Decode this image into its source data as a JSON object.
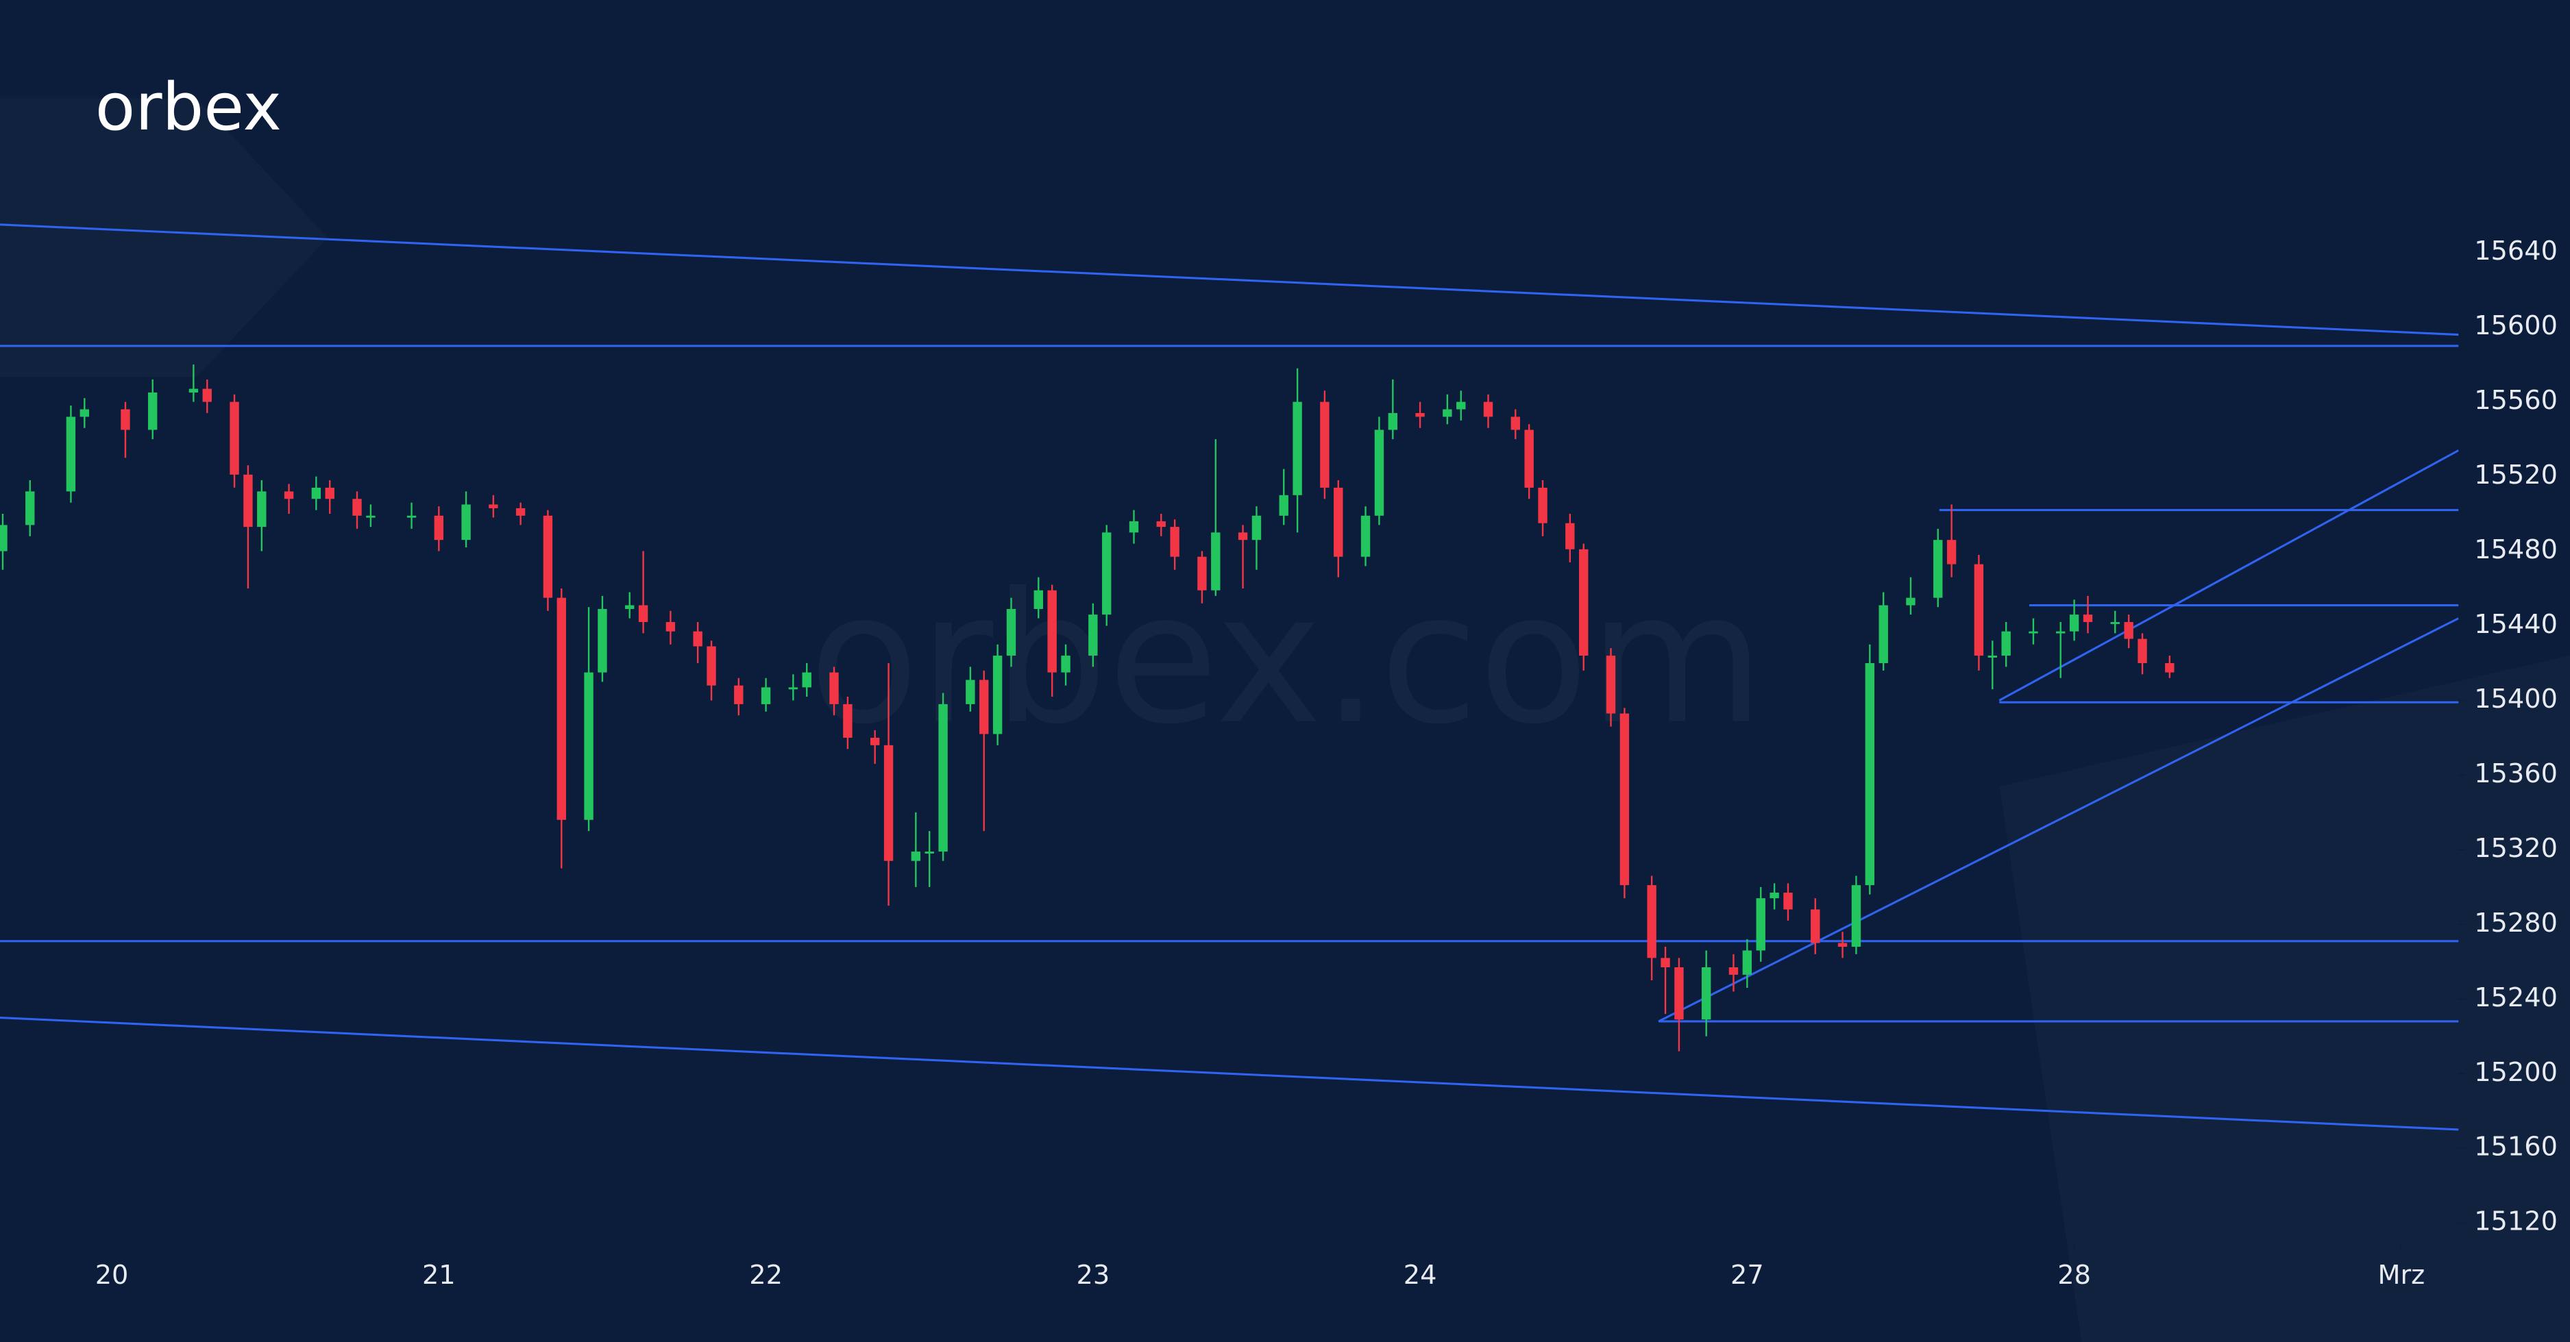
{
  "logo": "orbex",
  "watermark": "orbex.com",
  "chart_data": {
    "type": "candlestick",
    "up_color": "#22c55e",
    "down_color": "#f23645",
    "line_color": "#2f63f0",
    "xlim": [
      -8.2,
      172.2
    ],
    "ylim": [
      15108,
      15677
    ],
    "yticks": [
      15120,
      15160,
      15200,
      15240,
      15280,
      15320,
      15360,
      15400,
      15440,
      15480,
      15520,
      15560,
      15600,
      15640
    ],
    "xticks": [
      {
        "value": 0,
        "label": "20"
      },
      {
        "value": 24,
        "label": "21"
      },
      {
        "value": 48,
        "label": "22"
      },
      {
        "value": 72,
        "label": "23"
      },
      {
        "value": 96,
        "label": "24"
      },
      {
        "value": 120,
        "label": "27"
      },
      {
        "value": 144,
        "label": "28"
      },
      {
        "value": 168,
        "label": "Mrz"
      }
    ],
    "x": [
      -8,
      -6,
      -3,
      -2,
      1,
      3,
      6,
      7,
      9,
      10,
      11,
      13,
      15,
      16,
      18,
      19,
      22,
      24,
      26,
      28,
      30,
      32,
      33,
      35,
      36,
      38,
      39,
      41,
      43,
      44,
      46,
      48,
      50,
      51,
      53,
      54,
      56,
      57,
      59,
      60,
      61,
      63,
      64,
      65,
      66,
      68,
      69,
      70,
      72,
      73,
      75,
      77,
      78,
      80,
      81,
      83,
      84,
      86,
      87,
      89,
      90,
      92,
      93,
      94,
      96,
      98,
      99,
      101,
      103,
      104,
      105,
      107,
      108,
      110,
      111,
      113,
      114,
      115,
      117,
      119,
      120,
      121,
      122,
      123,
      125,
      127,
      128,
      129,
      130,
      132,
      134,
      135,
      137,
      138,
      139,
      141,
      143,
      144,
      145,
      147,
      148,
      149,
      151
    ],
    "open": [
      15480,
      15494,
      15512,
      15552,
      15556,
      15545,
      15565,
      15567,
      15560,
      15521,
      15493,
      15512,
      15508,
      15514,
      15508,
      15499,
      15499,
      15499,
      15486,
      15505,
      15503,
      15499,
      15455,
      15336,
      15415,
      15449,
      15451,
      15442,
      15437,
      15429,
      15408,
      15398,
      15407,
      15407,
      15415,
      15398,
      15380,
      15376,
      15314,
      15319,
      15319,
      15398,
      15411,
      15382,
      15424,
      15449,
      15459,
      15415,
      15424,
      15446,
      15490,
      15496,
      15493,
      15477,
      15459,
      15490,
      15486,
      15499,
      15510,
      15560,
      15514,
      15477,
      15499,
      15545,
      15554,
      15552,
      15556,
      15560,
      15552,
      15545,
      15514,
      15495,
      15481,
      15424,
      15393,
      15301,
      15262,
      15257,
      15229,
      15257,
      15253,
      15266,
      15294,
      15297,
      15288,
      15270,
      15268,
      15301,
      15420,
      15451,
      15455,
      15486,
      15473,
      15424,
      15424,
      15437,
      15437,
      15437,
      15446,
      15442,
      15442,
      15433,
      15420
    ],
    "high": [
      15500,
      15518,
      15558,
      15562,
      15560,
      15572,
      15580,
      15572,
      15564,
      15526,
      15518,
      15516,
      15520,
      15518,
      15512,
      15505,
      15506,
      15504,
      15512,
      15510,
      15506,
      15502,
      15460,
      15450,
      15456,
      15458,
      15480,
      15448,
      15442,
      15432,
      15412,
      15412,
      15414,
      15420,
      15418,
      15402,
      15384,
      15420,
      15340,
      15330,
      15404,
      15418,
      15416,
      15430,
      15455,
      15466,
      15462,
      15430,
      15452,
      15494,
      15502,
      15500,
      15497,
      15480,
      15540,
      15494,
      15504,
      15524,
      15578,
      15566,
      15518,
      15504,
      15552,
      15572,
      15560,
      15564,
      15566,
      15564,
      15556,
      15548,
      15518,
      15500,
      15484,
      15428,
      15396,
      15306,
      15268,
      15262,
      15266,
      15264,
      15272,
      15300,
      15302,
      15302,
      15294,
      15276,
      15306,
      15430,
      15458,
      15466,
      15492,
      15505,
      15478,
      15432,
      15442,
      15444,
      15442,
      15454,
      15456,
      15448,
      15446,
      15436,
      15424
    ],
    "low": [
      15470,
      15488,
      15506,
      15546,
      15530,
      15540,
      15560,
      15554,
      15514,
      15460,
      15480,
      15500,
      15502,
      15500,
      15492,
      15493,
      15492,
      15480,
      15482,
      15498,
      15494,
      15448,
      15310,
      15330,
      15410,
      15444,
      15436,
      15430,
      15420,
      15400,
      15392,
      15394,
      15400,
      15402,
      15392,
      15374,
      15366,
      15290,
      15300,
      15300,
      15314,
      15394,
      15330,
      15376,
      15418,
      15444,
      15402,
      15408,
      15418,
      15440,
      15484,
      15488,
      15470,
      15452,
      15456,
      15460,
      15470,
      15494,
      15490,
      15508,
      15466,
      15472,
      15494,
      15540,
      15546,
      15548,
      15550,
      15546,
      15540,
      15508,
      15488,
      15474,
      15416,
      15386,
      15294,
      15250,
      15232,
      15212,
      15220,
      15244,
      15246,
      15260,
      15288,
      15282,
      15264,
      15262,
      15264,
      15296,
      15416,
      15446,
      15450,
      15466,
      15416,
      15406,
      15418,
      15430,
      15412,
      15432,
      15436,
      15436,
      15428,
      15414,
      15412
    ],
    "close": [
      15494,
      15512,
      15552,
      15556,
      15545,
      15565,
      15567,
      15560,
      15521,
      15493,
      15512,
      15508,
      15514,
      15508,
      15499,
      15499,
      15499,
      15486,
      15505,
      15503,
      15499,
      15455,
      15336,
      15415,
      15449,
      15451,
      15442,
      15437,
      15429,
      15408,
      15398,
      15407,
      15407,
      15415,
      15398,
      15380,
      15376,
      15314,
      15319,
      15319,
      15398,
      15411,
      15382,
      15424,
      15449,
      15459,
      15415,
      15424,
      15446,
      15490,
      15496,
      15493,
      15477,
      15459,
      15490,
      15486,
      15499,
      15510,
      15560,
      15514,
      15477,
      15499,
      15545,
      15554,
      15552,
      15556,
      15560,
      15552,
      15545,
      15514,
      15495,
      15481,
      15424,
      15393,
      15301,
      15262,
      15257,
      15229,
      15257,
      15253,
      15266,
      15294,
      15297,
      15288,
      15270,
      15268,
      15301,
      15420,
      15451,
      15455,
      15486,
      15473,
      15424,
      15424,
      15437,
      15437,
      15437,
      15446,
      15442,
      15442,
      15433,
      15420,
      15415
    ],
    "trendlines": [
      {
        "x": [
          -8.2,
          172.2
        ],
        "y": [
          15655,
          15596
        ]
      },
      {
        "x": [
          -8.2,
          172.2
        ],
        "y": [
          15590,
          15590
        ]
      },
      {
        "x": [
          -8.2,
          172.2
        ],
        "y": [
          15271,
          15271
        ]
      },
      {
        "x": [
          -8.2,
          172.2
        ],
        "y": [
          15230,
          15170
        ]
      },
      {
        "x": [
          113.5,
          172.2
        ],
        "y": [
          15228,
          15228
        ]
      },
      {
        "x": [
          113.5,
          172.2
        ],
        "y": [
          15228,
          15444
        ]
      },
      {
        "x": [
          138.5,
          172.2
        ],
        "y": [
          15400,
          15534
        ]
      },
      {
        "x": [
          134.1,
          172.2
        ],
        "y": [
          15502,
          15502
        ]
      },
      {
        "x": [
          140.7,
          172.2
        ],
        "y": [
          15451,
          15451
        ]
      },
      {
        "x": [
          138.5,
          172.2
        ],
        "y": [
          15399,
          15399
        ]
      }
    ]
  }
}
